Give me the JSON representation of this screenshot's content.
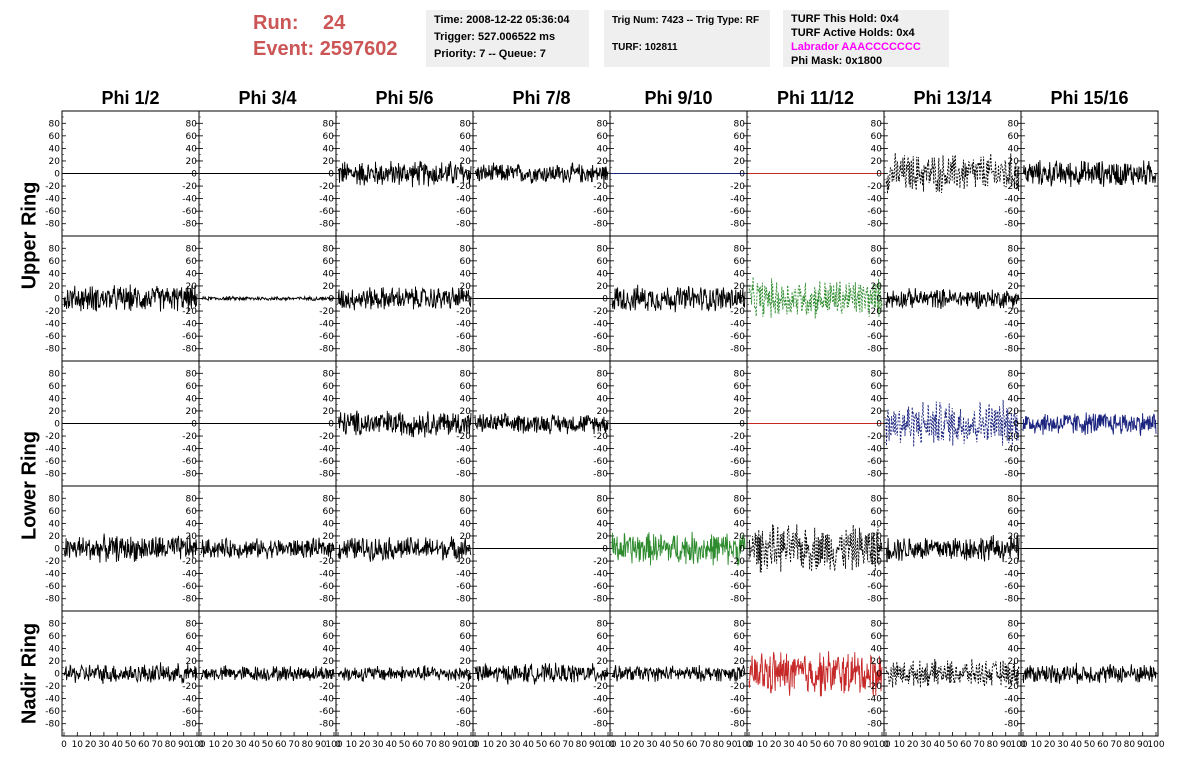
{
  "header": {
    "run_label": "Run:",
    "run_value": "24",
    "event_label": "Event:",
    "event_value": "2597602",
    "time_line": "Time: 2008-12-22 05:36:04",
    "trigger_line": "Trigger: 527.006522 ms",
    "priority_line": "Priority: 7 -- Queue: 7",
    "trig_line": "Trig Num: 7423 -- Trig Type: RF",
    "turf_line": "TURF: 102811",
    "turf_hold_line": "TURF This Hold: 0x4",
    "turf_active_line": "TURF Active Holds: 0x4",
    "labrador_line": "Labrador AAACCCCCCC",
    "phi_mask_line": "Phi Mask: 0x1800"
  },
  "columns": [
    "Phi 1/2",
    "Phi 3/4",
    "Phi 5/6",
    "Phi 7/8",
    "Phi 9/10",
    "Phi 11/12",
    "Phi 13/14",
    "Phi 15/16"
  ],
  "row_labels": [
    "Upper Ring",
    "Lower Ring",
    "Nadir Ring"
  ],
  "colors": {
    "black": "#000000",
    "blue": "#1a237e",
    "red": "#c62828",
    "green": "#2e8b2e",
    "header_red": "#cc5555",
    "magenta": "#ff00ff"
  },
  "chart_data": {
    "type": "line",
    "ylim": [
      -90,
      90
    ],
    "xlim": [
      0,
      100
    ],
    "yticks": [
      -80,
      -60,
      -40,
      -20,
      0,
      20,
      40,
      60,
      80
    ],
    "xticks": [
      0,
      10,
      20,
      30,
      40,
      50,
      60,
      70,
      80,
      90,
      100
    ],
    "panels": [
      [
        {
          "color": "black",
          "style": "flat",
          "amp": 0
        },
        {
          "color": "black",
          "style": "flat",
          "amp": 0
        },
        {
          "color": "black",
          "style": "solid",
          "amp": 20
        },
        {
          "color": "black",
          "style": "solid",
          "amp": 15
        },
        {
          "color": "blue",
          "style": "flat",
          "amp": 0
        },
        {
          "color": "red",
          "style": "flat",
          "amp": 0
        },
        {
          "color": "black",
          "style": "dashed",
          "amp": 30
        },
        {
          "color": "black",
          "style": "solid",
          "amp": 20
        }
      ],
      [
        {
          "color": "black",
          "style": "solid",
          "amp": 20
        },
        {
          "color": "black",
          "style": "solid",
          "amp": 3
        },
        {
          "color": "black",
          "style": "solid",
          "amp": 18
        },
        {
          "color": "black",
          "style": "flat",
          "amp": 0
        },
        {
          "color": "black",
          "style": "solid",
          "amp": 20
        },
        {
          "color": "green",
          "style": "dashed",
          "amp": 30
        },
        {
          "color": "black",
          "style": "solid",
          "amp": 15
        },
        {
          "color": "black",
          "style": "flat",
          "amp": 0
        }
      ],
      [
        {
          "color": "black",
          "style": "flat",
          "amp": 0
        },
        {
          "color": "black",
          "style": "flat",
          "amp": 0
        },
        {
          "color": "black",
          "style": "solid",
          "amp": 20
        },
        {
          "color": "black",
          "style": "solid",
          "amp": 15
        },
        {
          "color": "black",
          "style": "flat",
          "amp": 0
        },
        {
          "color": "red",
          "style": "flat",
          "amp": 0
        },
        {
          "color": "blue",
          "style": "dashed",
          "amp": 35
        },
        {
          "color": "blue",
          "style": "solid",
          "amp": 18
        }
      ],
      [
        {
          "color": "black",
          "style": "solid",
          "amp": 20
        },
        {
          "color": "black",
          "style": "solid",
          "amp": 15
        },
        {
          "color": "black",
          "style": "solid",
          "amp": 18
        },
        {
          "color": "black",
          "style": "flat",
          "amp": 0
        },
        {
          "color": "green",
          "style": "solid",
          "amp": 25
        },
        {
          "color": "black",
          "style": "dashed",
          "amp": 35
        },
        {
          "color": "black",
          "style": "solid",
          "amp": 20
        },
        {
          "color": "black",
          "style": "flat",
          "amp": 0
        }
      ],
      [
        {
          "color": "black",
          "style": "solid",
          "amp": 15
        },
        {
          "color": "black",
          "style": "solid",
          "amp": 12
        },
        {
          "color": "black",
          "style": "solid",
          "amp": 12
        },
        {
          "color": "black",
          "style": "solid",
          "amp": 15
        },
        {
          "color": "black",
          "style": "solid",
          "amp": 12
        },
        {
          "color": "red",
          "style": "solid",
          "amp": 35
        },
        {
          "color": "black",
          "style": "dashed",
          "amp": 20
        },
        {
          "color": "black",
          "style": "solid",
          "amp": 15
        }
      ]
    ]
  }
}
